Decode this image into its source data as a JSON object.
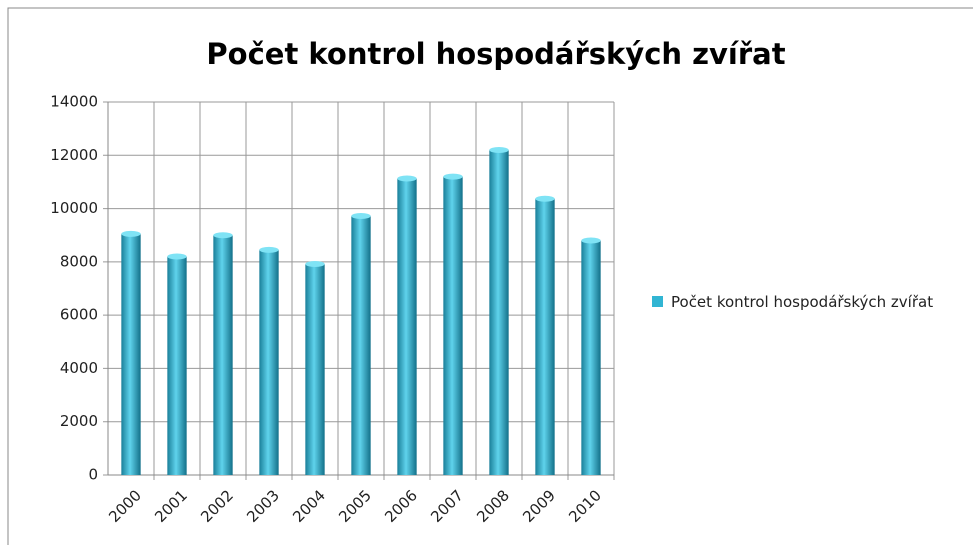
{
  "chart_data": {
    "type": "bar",
    "title": "Počet kontrol hospodářských zvířat",
    "categories": [
      "2000",
      "2001",
      "2002",
      "2003",
      "2004",
      "2005",
      "2006",
      "2007",
      "2008",
      "2009",
      "2010"
    ],
    "series": [
      {
        "name": "Počet kontrol hospodářských zvířat",
        "color": "#31b5d3",
        "values": [
          9050,
          8200,
          9000,
          8450,
          7920,
          9720,
          11130,
          11200,
          12200,
          10370,
          8800
        ]
      }
    ],
    "ylim": [
      0,
      14000
    ],
    "yticks": [
      0,
      2000,
      4000,
      6000,
      8000,
      10000,
      12000,
      14000
    ],
    "grid": true,
    "legend": "right"
  }
}
